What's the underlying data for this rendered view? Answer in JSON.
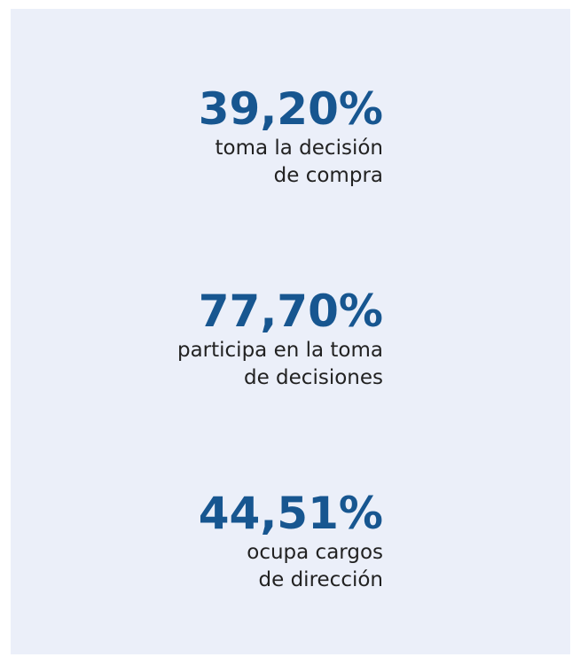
{
  "stats": [
    {
      "value": "39,20%",
      "lines": [
        "toma la decisión",
        "de compra"
      ]
    },
    {
      "value": "77,70%",
      "lines": [
        "participa en la toma",
        "de decisiones"
      ]
    },
    {
      "value": "44,51%",
      "lines": [
        "ocupa cargos",
        "de dirección"
      ]
    }
  ]
}
